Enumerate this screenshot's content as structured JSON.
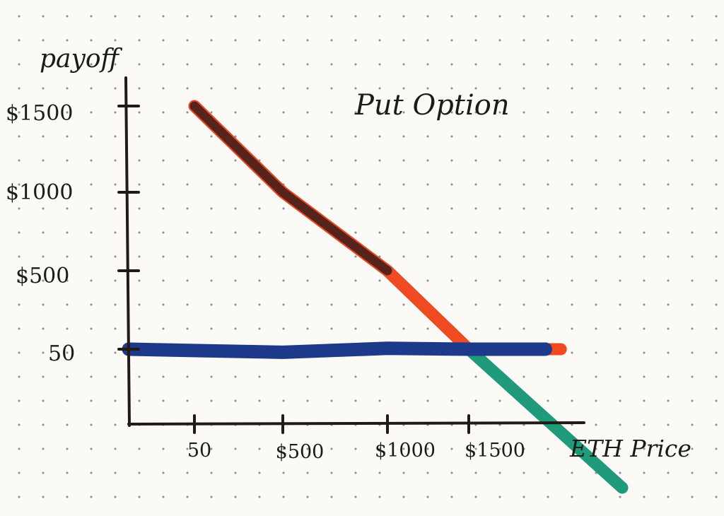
{
  "chart_data": {
    "type": "line",
    "title": "Put Option",
    "xlabel": "ETH Price",
    "ylabel": "payoff",
    "x_ticks": [
      "50",
      "$500",
      "$1000",
      "$1500"
    ],
    "y_ticks": [
      "$1500",
      "$1000",
      "$500",
      "50"
    ],
    "x_tick_values": [
      50,
      500,
      1000,
      1500
    ],
    "y_tick_values": [
      1500,
      1000,
      500,
      50
    ],
    "grid": false,
    "series": [
      {
        "color": "#1f9a7a",
        "points": [
          [
            50,
            1500
          ],
          [
            500,
            1000
          ],
          [
            1000,
            500
          ],
          [
            1500,
            50
          ],
          [
            2000,
            -400
          ]
        ]
      },
      {
        "color": "#f04a23",
        "points": [
          [
            50,
            1500
          ],
          [
            500,
            1000
          ],
          [
            1000,
            500
          ],
          [
            1500,
            50
          ],
          [
            1800,
            50
          ]
        ]
      },
      {
        "color": "#4a211c",
        "points": [
          [
            50,
            1500
          ],
          [
            500,
            1000
          ],
          [
            1000,
            500
          ]
        ]
      },
      {
        "color": "#1d3a8a",
        "points": [
          [
            0,
            50
          ],
          [
            500,
            40
          ],
          [
            1000,
            55
          ],
          [
            1500,
            50
          ],
          [
            1750,
            50
          ]
        ]
      }
    ]
  }
}
